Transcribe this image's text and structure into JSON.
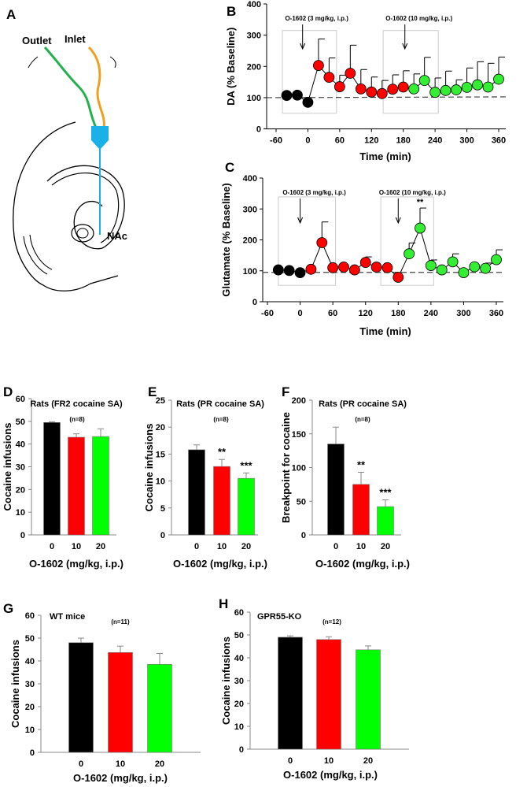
{
  "panel_a": {
    "letter": "A",
    "labels": {
      "outlet": "Outlet",
      "inlet": "Inlet",
      "region": "NAc"
    },
    "colors": {
      "outlet_tube": "#22b14c",
      "inlet_tube": "#f0a020",
      "probe": "#1ab0e8"
    }
  },
  "chart_data": [
    {
      "panel": "B",
      "type": "line",
      "xlabel": "Time (min)",
      "ylabel": "DA (% Baseline)",
      "xlim": [
        -60,
        360
      ],
      "ylim": [
        0,
        400
      ],
      "xticks": [
        -60,
        0,
        60,
        120,
        180,
        240,
        300,
        360
      ],
      "yticks": [
        0,
        100,
        200,
        300,
        400
      ],
      "x": [
        -40,
        -20,
        0,
        20,
        40,
        60,
        80,
        100,
        120,
        140,
        160,
        180,
        200,
        220,
        240,
        260,
        280,
        300,
        320,
        340,
        360
      ],
      "y": [
        107,
        108,
        85,
        203,
        165,
        135,
        178,
        128,
        118,
        113,
        127,
        134,
        128,
        155,
        117,
        123,
        125,
        133,
        141,
        134,
        159
      ],
      "error_upper": [
        null,
        null,
        null,
        288,
        227,
        172,
        268,
        190,
        166,
        155,
        173,
        186,
        176,
        229,
        163,
        185,
        157,
        195,
        215,
        210,
        230
      ],
      "point_colors": [
        "#000000",
        "#000000",
        "#000000",
        "#ff0000",
        "#ff0000",
        "#ff0000",
        "#ff0000",
        "#ff0000",
        "#ff0000",
        "#ff0000",
        "#ff0000",
        "#ff0000",
        "#33ee33",
        "#33ee33",
        "#33ee33",
        "#33ee33",
        "#33ee33",
        "#33ee33",
        "#33ee33",
        "#33ee33",
        "#33ee33"
      ],
      "baseline": 100,
      "highlight_ranges": [
        {
          "x": [
            -48,
            54
          ],
          "y": [
            50,
            315
          ]
        },
        {
          "x": [
            142,
            246
          ],
          "y": [
            50,
            315
          ]
        }
      ],
      "annotations": [
        {
          "text": "O-1602 (3 mg/kg, i.p.)",
          "arrow_x": -10
        },
        {
          "text": "O-1602 (10 mg/kg, i.p.)",
          "arrow_x": 183
        }
      ],
      "significance": []
    },
    {
      "panel": "C",
      "type": "line",
      "xlabel": "Time (min)",
      "ylabel": "Glutamate (% Baseline)",
      "xlim": [
        -60,
        360
      ],
      "ylim": [
        0,
        400
      ],
      "xticks": [
        -60,
        0,
        60,
        120,
        180,
        240,
        300,
        360
      ],
      "yticks": [
        0,
        100,
        200,
        300,
        400
      ],
      "x": [
        -40,
        -20,
        0,
        20,
        40,
        60,
        80,
        100,
        120,
        140,
        160,
        180,
        200,
        220,
        240,
        260,
        280,
        300,
        320,
        340,
        360
      ],
      "y": [
        103,
        101,
        94,
        105,
        191,
        110,
        112,
        103,
        127,
        112,
        110,
        79,
        155,
        238,
        117,
        103,
        129,
        94,
        113,
        108,
        136
      ],
      "error_upper": [
        null,
        null,
        null,
        null,
        258,
        null,
        null,
        null,
        145,
        null,
        null,
        null,
        190,
        303,
        135,
        null,
        155,
        null,
        null,
        125,
        168
      ],
      "point_colors": [
        "#000000",
        "#000000",
        "#000000",
        "#ff0000",
        "#ff0000",
        "#ff0000",
        "#ff0000",
        "#ff0000",
        "#ff0000",
        "#ff0000",
        "#ff0000",
        "#ff0000",
        "#33ee33",
        "#33ee33",
        "#33ee33",
        "#33ee33",
        "#33ee33",
        "#33ee33",
        "#33ee33",
        "#33ee33",
        "#33ee33"
      ],
      "baseline": 95,
      "highlight_ranges": [
        {
          "x": [
            -40,
            65
          ],
          "y": [
            53,
            339
          ]
        },
        {
          "x": [
            148,
            245
          ],
          "y": [
            53,
            339
          ]
        }
      ],
      "annotations": [
        {
          "text": "O-1602 (3 mg/kg, i.p.)",
          "arrow_x": 0
        },
        {
          "text": "O-1602 (10 mg/kg, i.p.)",
          "arrow_x": 180
        }
      ],
      "significance": [
        {
          "x": 220,
          "label": "**"
        }
      ]
    },
    {
      "panel": "D",
      "type": "bar",
      "title": "Rats  (FR2 cocaine SA)",
      "n_label": "(n=8)",
      "xlabel": "O-1602 (mg/kg, i.p.)",
      "ylabel": "Cocaine infusions",
      "categories": [
        "0",
        "10",
        "20"
      ],
      "values": [
        49.5,
        43,
        43.3
      ],
      "error_upper": [
        49.8,
        44.5,
        46.7
      ],
      "significance": [
        "",
        "",
        ""
      ],
      "colors": [
        "#000000",
        "#ff0000",
        "#00ff00"
      ],
      "ylim": [
        0,
        60
      ],
      "yticks": [
        0,
        10,
        20,
        30,
        40,
        50,
        60
      ]
    },
    {
      "panel": "E",
      "type": "bar",
      "title": "Rats (PR cocaine SA)",
      "n_label": "(n=8)",
      "xlabel": "O-1602 (mg/kg, i.p.)",
      "ylabel": "Cocaine infusions",
      "categories": [
        "0",
        "10",
        "20"
      ],
      "values": [
        15.8,
        12.7,
        10.5
      ],
      "error_upper": [
        16.7,
        14,
        11.5
      ],
      "significance": [
        "",
        "**",
        "***"
      ],
      "colors": [
        "#000000",
        "#ff0000",
        "#00ff00"
      ],
      "ylim": [
        0,
        25
      ],
      "yticks": [
        0,
        5,
        10,
        15,
        20,
        25
      ]
    },
    {
      "panel": "F",
      "type": "bar",
      "title": "Rats (PR cocaine SA)",
      "n_label": "(n=8)",
      "xlabel": "O-1602 (mg/kg, i.p.)",
      "ylabel": "Breakpoint for cocaine",
      "categories": [
        "0",
        "10",
        "20"
      ],
      "values": [
        135,
        75,
        42
      ],
      "error_upper": [
        160,
        93,
        52
      ],
      "significance": [
        "",
        "**",
        "***"
      ],
      "colors": [
        "#000000",
        "#ff0000",
        "#00ff00"
      ],
      "ylim": [
        0,
        200
      ],
      "yticks": [
        0,
        50,
        100,
        150,
        200
      ]
    },
    {
      "panel": "G",
      "type": "bar",
      "title": "WT mice",
      "n_label": "(n=11)",
      "xlabel": "O-1602 (mg/kg, i.p.)",
      "ylabel": "Cocaine infusions",
      "categories": [
        "0",
        "10",
        "20"
      ],
      "values": [
        48,
        43.7,
        38.5
      ],
      "error_upper": [
        50,
        46.5,
        43.3
      ],
      "significance": [
        "",
        "",
        ""
      ],
      "colors": [
        "#000000",
        "#ff0000",
        "#00ff00"
      ],
      "ylim": [
        0,
        60
      ],
      "yticks": [
        0,
        10,
        20,
        30,
        40,
        50,
        60
      ]
    },
    {
      "panel": "H",
      "type": "bar",
      "title": "GPR55-KO",
      "n_label": "(n=12)",
      "xlabel": "O-1602 (mg/kg, i.p.)",
      "ylabel": "Cocaine infusions",
      "categories": [
        "0",
        "10",
        "20"
      ],
      "values": [
        49,
        48,
        43.5
      ],
      "error_upper": [
        49.6,
        49.2,
        45.2
      ],
      "significance": [
        "",
        "",
        ""
      ],
      "colors": [
        "#000000",
        "#ff0000",
        "#00ff00"
      ],
      "ylim": [
        0,
        60
      ],
      "yticks": [
        0,
        10,
        20,
        30,
        40,
        50,
        60
      ]
    }
  ]
}
